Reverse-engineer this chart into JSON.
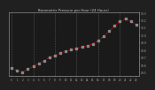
{
  "title": "Barometric Pressure per Hour (24 Hours)",
  "hours": [
    0,
    1,
    2,
    3,
    4,
    5,
    6,
    7,
    8,
    9,
    10,
    11,
    12,
    13,
    14,
    15,
    16,
    17,
    18,
    19,
    20,
    21,
    22,
    23
  ],
  "pressure": [
    29.55,
    29.52,
    29.5,
    29.54,
    29.58,
    29.62,
    29.65,
    29.7,
    29.72,
    29.76,
    29.78,
    29.8,
    29.82,
    29.84,
    29.85,
    29.88,
    29.92,
    29.98,
    30.05,
    30.12,
    30.18,
    30.22,
    30.18,
    30.14
  ],
  "ylim": [
    29.45,
    30.3
  ],
  "ytick_values": [
    29.5,
    29.6,
    29.7,
    29.8,
    29.9,
    30.0,
    30.1,
    30.2,
    30.3
  ],
  "bg_color": "#202020",
  "plot_bg_color": "#1a1a1a",
  "line_color": "#ff0000",
  "marker_color": "#888888",
  "grid_color": "#555555",
  "title_color": "#cccccc",
  "axis_color": "#aaaaaa",
  "xtick_step": 1,
  "grid_every": 4
}
